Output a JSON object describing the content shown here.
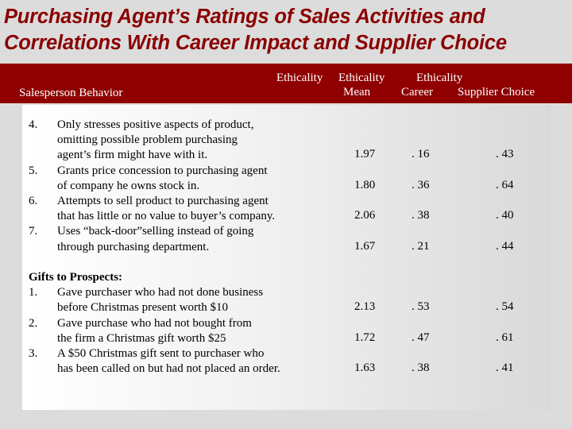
{
  "title": {
    "line1": "Purchasing Agent’s Ratings of Sales Activities and",
    "line2": "Correlations With Career Impact and Supplier Choice"
  },
  "header": {
    "salesperson_behavior": "Salesperson Behavior",
    "col_mean_top": "Ethicality",
    "col_mean_bottom": "Mean",
    "col_career_top": "Ethicality",
    "col_career_bottom": "Career",
    "col_supplier_top": "Ethicality",
    "col_supplier_bottom": "Supplier Choice"
  },
  "section1": {
    "items": [
      {
        "num": "4.",
        "lines": [
          "Only stresses positive aspects of product,",
          "omitting possible problem purchasing",
          "agent’s firm might have with it."
        ],
        "mean": "1.97",
        "career": ". 16",
        "supplier": ". 43"
      },
      {
        "num": "5.",
        "lines": [
          "Grants price concession to purchasing agent",
          "of company he owns stock in."
        ],
        "mean": "1.80",
        "career": ". 36",
        "supplier": ". 64"
      },
      {
        "num": "6.",
        "lines": [
          "Attempts to sell product to purchasing agent",
          "that has little or no value to buyer’s company."
        ],
        "mean": "2.06",
        "career": ". 38",
        "supplier": ". 40"
      },
      {
        "num": "7.",
        "lines": [
          "Uses “back-door”selling instead of going",
          "through purchasing department."
        ],
        "mean": "1.67",
        "career": ". 21",
        "supplier": ". 44"
      }
    ]
  },
  "section2": {
    "heading": "Gifts to Prospects:",
    "items": [
      {
        "num": "1.",
        "lines": [
          "Gave purchaser who had not done business",
          "before Christmas present worth $10"
        ],
        "mean": "2.13",
        "career": ". 53",
        "supplier": ". 54"
      },
      {
        "num": "2.",
        "lines": [
          "Gave purchase who had not bought from",
          "the firm a Christmas gift worth $25"
        ],
        "mean": "1.72",
        "career": ". 47",
        "supplier": ". 61"
      },
      {
        "num": "3.",
        "lines": [
          "A $50 Christmas gift sent to purchaser who",
          "has been called on but had not placed an order."
        ],
        "mean": "1.63",
        "career": ". 38",
        "supplier": ". 41"
      }
    ]
  }
}
